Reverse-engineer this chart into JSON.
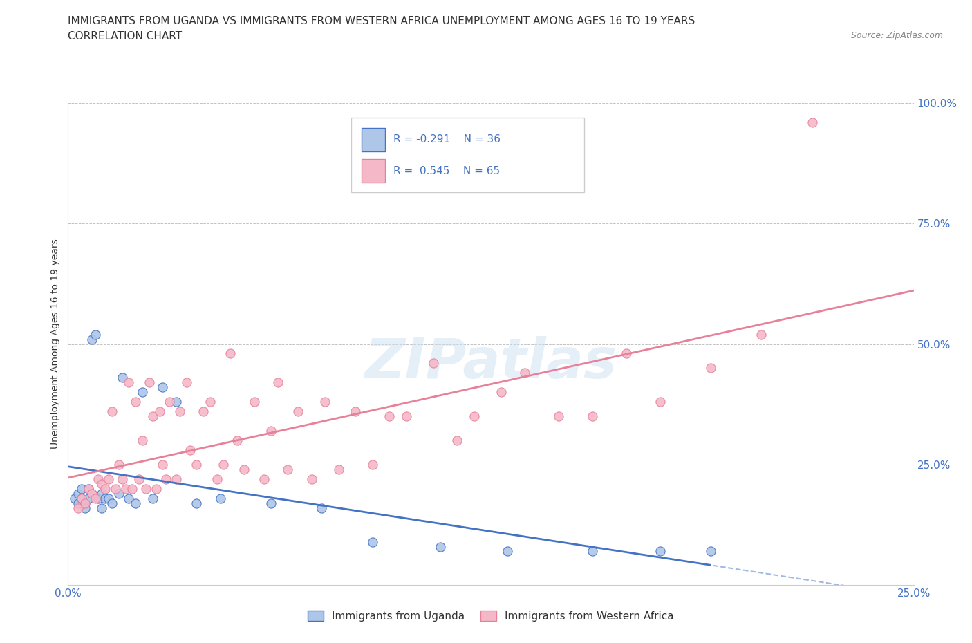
{
  "title_line1": "IMMIGRANTS FROM UGANDA VS IMMIGRANTS FROM WESTERN AFRICA UNEMPLOYMENT AMONG AGES 16 TO 19 YEARS",
  "title_line2": "CORRELATION CHART",
  "source": "Source: ZipAtlas.com",
  "ylabel": "Unemployment Among Ages 16 to 19 years",
  "xlim": [
    0.0,
    0.25
  ],
  "ylim": [
    0.0,
    1.0
  ],
  "legend_labels": [
    "Immigrants from Uganda",
    "Immigrants from Western Africa"
  ],
  "uganda_fill_color": "#aec6e8",
  "western_africa_fill_color": "#f5b8c8",
  "uganda_edge_color": "#4472c4",
  "western_africa_edge_color": "#e8809a",
  "uganda_line_color": "#4472c4",
  "western_africa_line_color": "#e8809a",
  "uganda_R": -0.291,
  "uganda_N": 36,
  "western_africa_R": 0.545,
  "western_africa_N": 65,
  "watermark": "ZIPatlas",
  "tick_color": "#4472c4",
  "uganda_scatter_x": [
    0.002,
    0.003,
    0.003,
    0.004,
    0.004,
    0.005,
    0.005,
    0.006,
    0.006,
    0.007,
    0.007,
    0.008,
    0.009,
    0.01,
    0.01,
    0.011,
    0.012,
    0.013,
    0.015,
    0.016,
    0.018,
    0.02,
    0.022,
    0.025,
    0.028,
    0.032,
    0.038,
    0.045,
    0.06,
    0.075,
    0.09,
    0.11,
    0.13,
    0.155,
    0.175,
    0.19
  ],
  "uganda_scatter_y": [
    0.18,
    0.17,
    0.19,
    0.18,
    0.2,
    0.17,
    0.16,
    0.18,
    0.2,
    0.19,
    0.51,
    0.52,
    0.18,
    0.19,
    0.16,
    0.18,
    0.18,
    0.17,
    0.19,
    0.43,
    0.18,
    0.17,
    0.4,
    0.18,
    0.41,
    0.38,
    0.17,
    0.18,
    0.17,
    0.16,
    0.09,
    0.08,
    0.07,
    0.07,
    0.07,
    0.07
  ],
  "western_africa_scatter_x": [
    0.003,
    0.004,
    0.005,
    0.006,
    0.007,
    0.008,
    0.009,
    0.01,
    0.011,
    0.012,
    0.013,
    0.014,
    0.015,
    0.016,
    0.017,
    0.018,
    0.019,
    0.02,
    0.021,
    0.022,
    0.023,
    0.024,
    0.025,
    0.026,
    0.027,
    0.028,
    0.029,
    0.03,
    0.032,
    0.033,
    0.035,
    0.036,
    0.038,
    0.04,
    0.042,
    0.044,
    0.046,
    0.048,
    0.05,
    0.052,
    0.055,
    0.058,
    0.06,
    0.062,
    0.065,
    0.068,
    0.072,
    0.076,
    0.08,
    0.085,
    0.09,
    0.095,
    0.1,
    0.108,
    0.115,
    0.12,
    0.128,
    0.135,
    0.145,
    0.155,
    0.165,
    0.175,
    0.19,
    0.205,
    0.22
  ],
  "western_africa_scatter_y": [
    0.16,
    0.18,
    0.17,
    0.2,
    0.19,
    0.18,
    0.22,
    0.21,
    0.2,
    0.22,
    0.36,
    0.2,
    0.25,
    0.22,
    0.2,
    0.42,
    0.2,
    0.38,
    0.22,
    0.3,
    0.2,
    0.42,
    0.35,
    0.2,
    0.36,
    0.25,
    0.22,
    0.38,
    0.22,
    0.36,
    0.42,
    0.28,
    0.25,
    0.36,
    0.38,
    0.22,
    0.25,
    0.48,
    0.3,
    0.24,
    0.38,
    0.22,
    0.32,
    0.42,
    0.24,
    0.36,
    0.22,
    0.38,
    0.24,
    0.36,
    0.25,
    0.35,
    0.35,
    0.46,
    0.3,
    0.35,
    0.4,
    0.44,
    0.35,
    0.35,
    0.48,
    0.38,
    0.45,
    0.52,
    0.96
  ]
}
